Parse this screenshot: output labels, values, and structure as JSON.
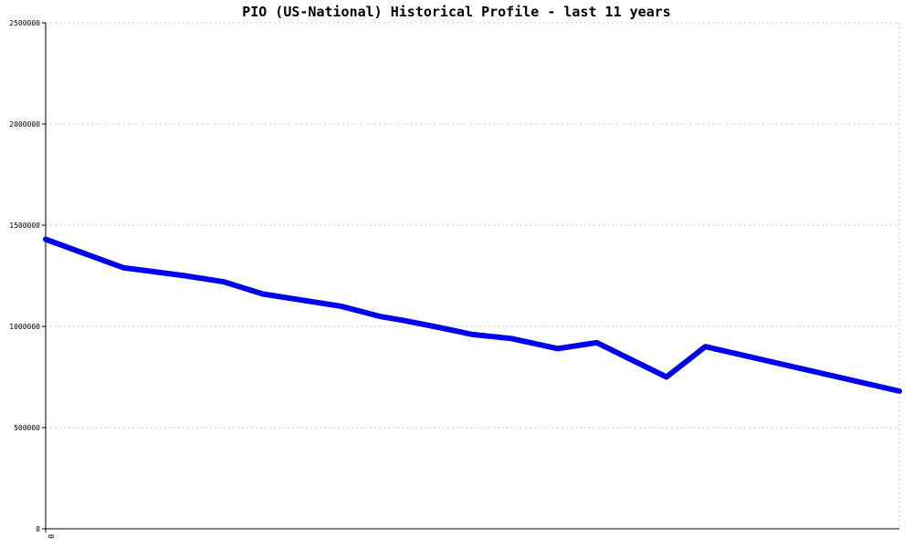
{
  "chart_data": {
    "type": "line",
    "title": "PIO (US-National) Historical Profile - last 11 years",
    "xlabel": "",
    "ylabel": "",
    "ylim": [
      0,
      2500000
    ],
    "y_ticks": [
      0,
      500000,
      1000000,
      1500000,
      2000000,
      2500000
    ],
    "y_tick_labels": [
      "0",
      "500000",
      "1000000",
      "1500000",
      "2000000",
      "2500000"
    ],
    "x_tick_labels": [
      "0"
    ],
    "grid": true,
    "legend": "none",
    "series": [
      {
        "color": "#0000ee",
        "points": [
          {
            "x": 0,
            "y": 1430000
          },
          {
            "x": 1,
            "y": 1290000
          },
          {
            "x": 1.8,
            "y": 1250000
          },
          {
            "x": 2.3,
            "y": 1220000
          },
          {
            "x": 2.8,
            "y": 1160000
          },
          {
            "x": 3.8,
            "y": 1100000
          },
          {
            "x": 4.3,
            "y": 1050000
          },
          {
            "x": 4.6,
            "y": 1030000
          },
          {
            "x": 5.0,
            "y": 1000000
          },
          {
            "x": 5.5,
            "y": 960000
          },
          {
            "x": 6.0,
            "y": 940000
          },
          {
            "x": 6.6,
            "y": 890000
          },
          {
            "x": 7.1,
            "y": 920000
          },
          {
            "x": 8.0,
            "y": 750000
          },
          {
            "x": 8.5,
            "y": 900000
          },
          {
            "x": 11,
            "y": 680000
          }
        ]
      }
    ],
    "xlim": [
      0,
      11
    ]
  }
}
